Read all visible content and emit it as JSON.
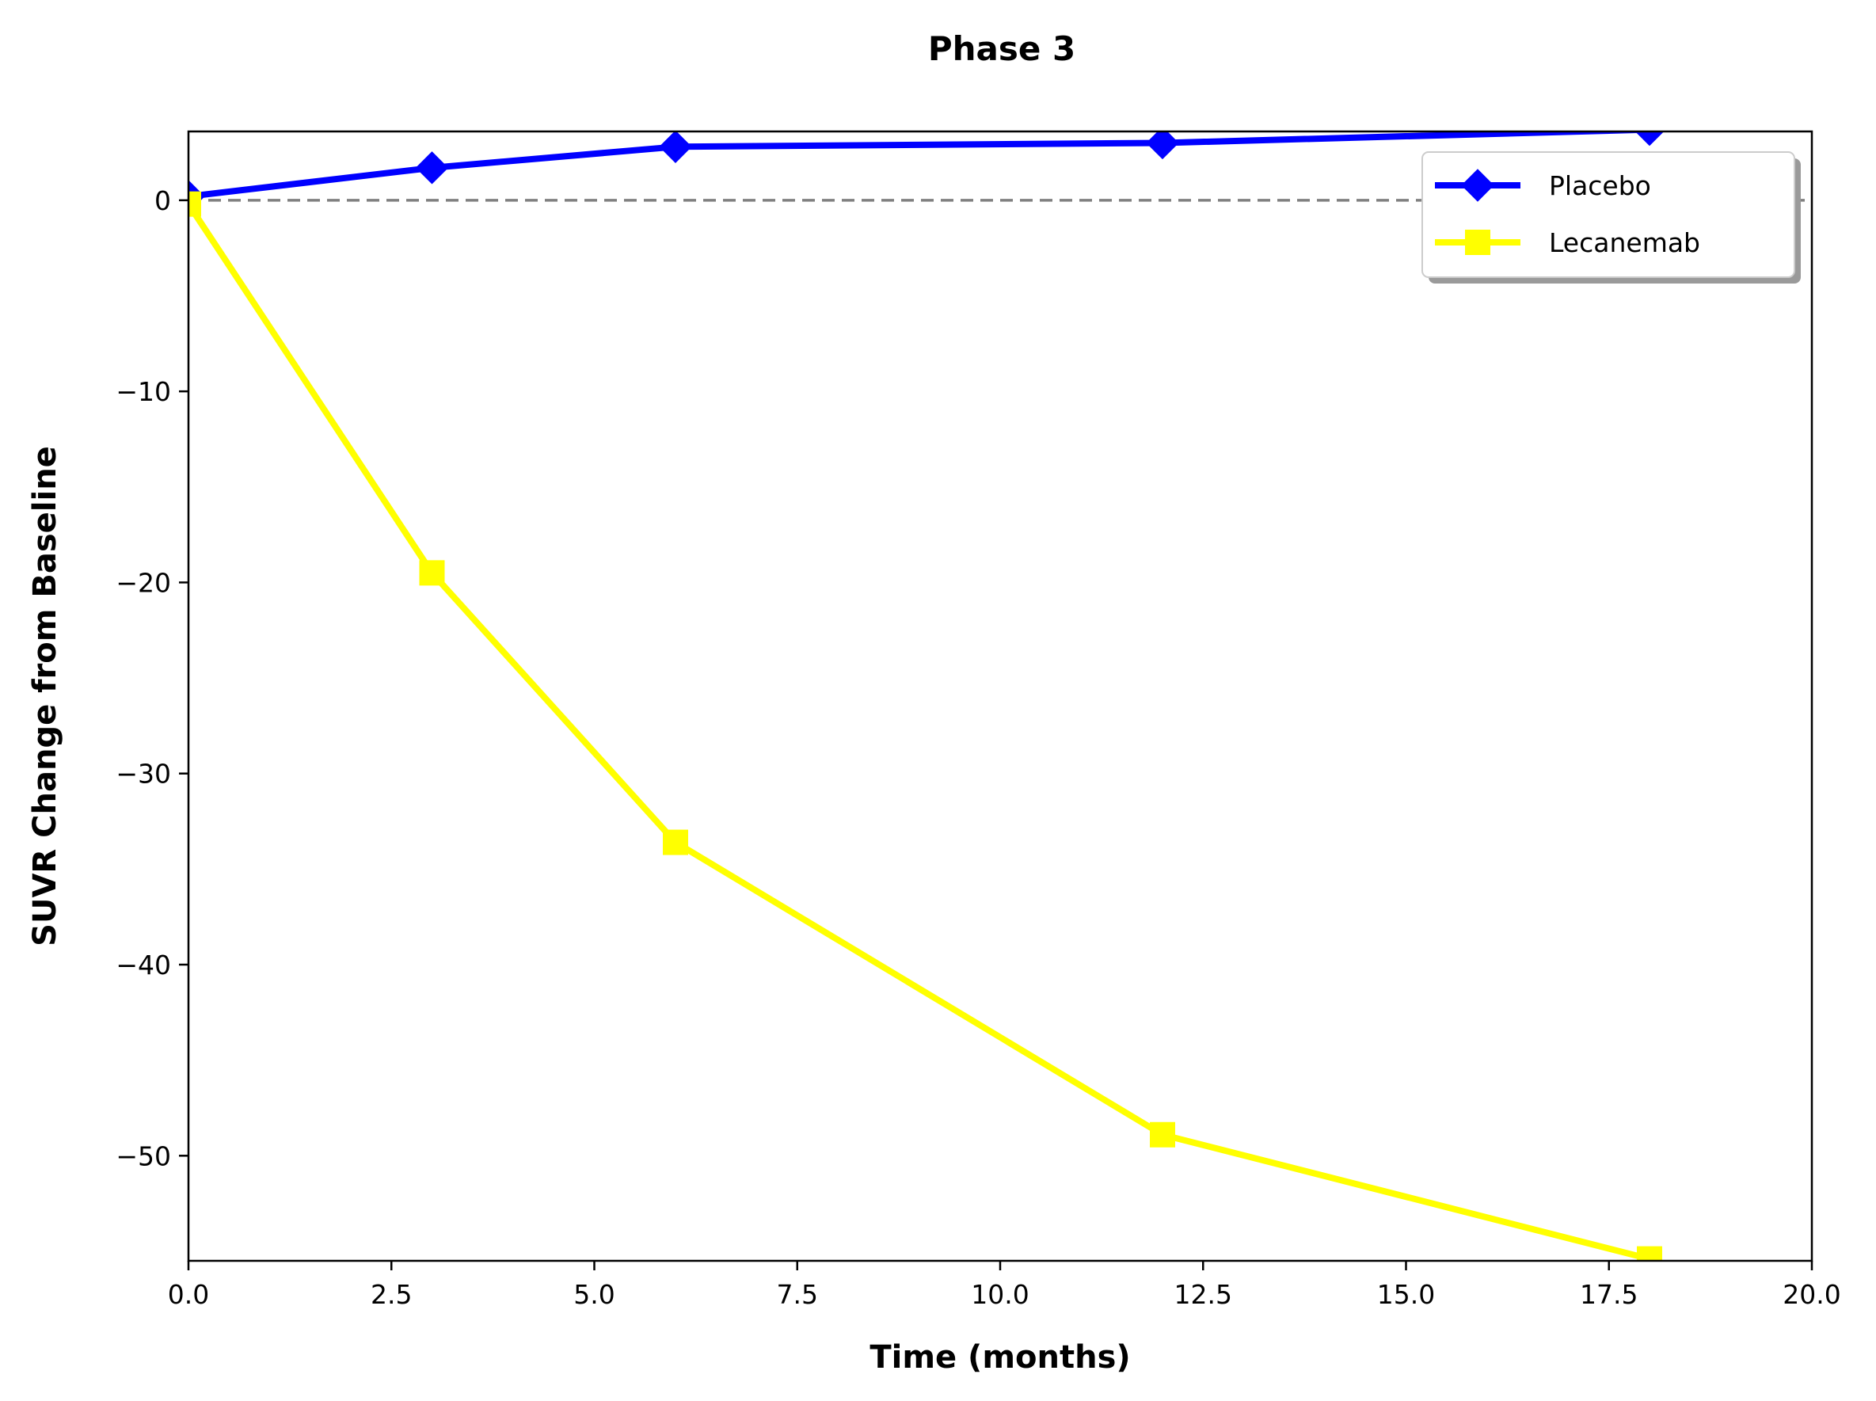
{
  "chart_data": {
    "type": "line",
    "title": "Phase 3",
    "xlabel": "Time (months)",
    "ylabel": "SUVR Change from Baseline",
    "xlim": [
      0,
      20
    ],
    "ylim": [
      -55.5,
      3.6
    ],
    "x_ticks": [
      "0.0",
      "2.5",
      "5.0",
      "7.5",
      "10.0",
      "12.5",
      "15.0",
      "17.5",
      "20.0"
    ],
    "y_ticks": [
      "0",
      "−10",
      "−20",
      "−30",
      "−40",
      "−50"
    ],
    "x_tick_values": [
      0,
      2.5,
      5,
      7.5,
      10,
      12.5,
      15,
      17.5,
      20
    ],
    "y_tick_values": [
      0,
      -10,
      -20,
      -30,
      -40,
      -50
    ],
    "reference_line": {
      "y": 0,
      "style": "dashed",
      "color": "#808080"
    },
    "grid": false,
    "legend": "upper right",
    "series": [
      {
        "name": "Placebo",
        "color": "#0000ff",
        "marker": "diamond",
        "x": [
          0,
          3,
          6,
          12,
          18
        ],
        "y": [
          0.2,
          1.7,
          2.8,
          3.0,
          3.7
        ]
      },
      {
        "name": "Lecanemab",
        "color": "#ffff00",
        "marker": "square",
        "x": [
          0,
          3,
          6,
          12,
          18
        ],
        "y": [
          -0.2,
          -19.5,
          -33.6,
          -48.9,
          -55.4
        ]
      }
    ]
  }
}
